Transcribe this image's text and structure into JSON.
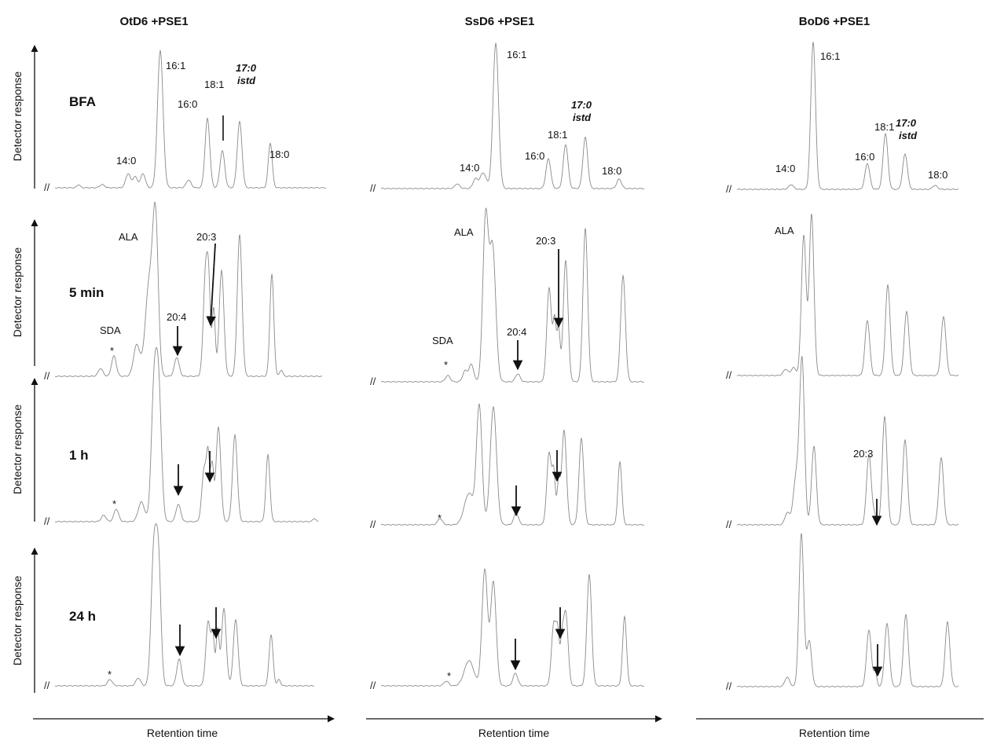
{
  "chart_data": {
    "type": "line",
    "y_axis_label": "Detector response",
    "x_axis_label": "Retention time",
    "panels_columns": [
      "OtD6 +PSE1",
      "SsD6 +PSE1",
      "BoD6 +PSE1"
    ],
    "rows": [
      "BFA",
      "5 min",
      "1 h",
      "24 h"
    ],
    "axis_break_symbol": "//",
    "peak_labels": {
      "fa_14_0": "14:0",
      "fa_16_1": "16:1",
      "fa_16_0": "16:0",
      "fa_18_1": "18:1",
      "fa_17_0": "17:0",
      "istd": "istd",
      "fa_18_0": "18:0",
      "ala": "ALA",
      "sda": "SDA",
      "fa_20_3": "20:3",
      "fa_20_4": "20:4",
      "asterisk": "*"
    }
  }
}
